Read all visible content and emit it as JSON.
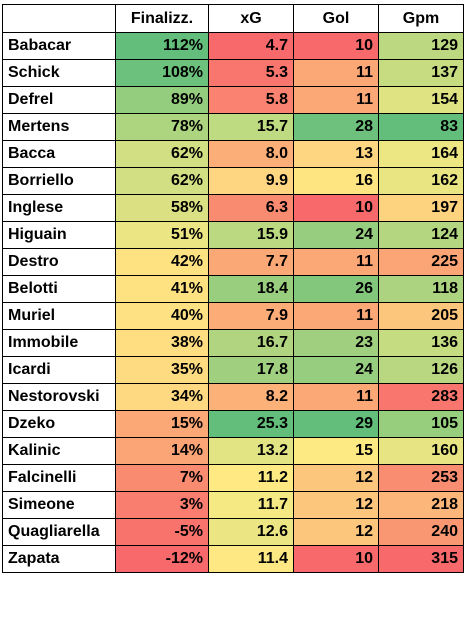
{
  "headers": [
    "",
    "Finalizz.",
    "xG",
    "Gol",
    "Gpm"
  ],
  "rows": [
    {
      "name": "Babacar",
      "fin": "112%",
      "xg": "4.7",
      "gol": "10",
      "gpm": "129",
      "colors": [
        "#63be7b",
        "#f8696b",
        "#f8696b",
        "#bcd981"
      ]
    },
    {
      "name": "Schick",
      "fin": "108%",
      "xg": "5.3",
      "gol": "11",
      "gpm": "137",
      "colors": [
        "#6cc17c",
        "#f8766d",
        "#fba776",
        "#c7dc81"
      ]
    },
    {
      "name": "Defrel",
      "fin": "89%",
      "xg": "5.8",
      "gol": "11",
      "gpm": "154",
      "colors": [
        "#95cd7e",
        "#f98370",
        "#fba776",
        "#dfe382"
      ]
    },
    {
      "name": "Mertens",
      "fin": "78%",
      "xg": "15.7",
      "gol": "28",
      "gpm": "83",
      "colors": [
        "#add47f",
        "#bfdb81",
        "#6ec17c",
        "#63be7b"
      ]
    },
    {
      "name": "Bacca",
      "fin": "62%",
      "xg": "8.0",
      "gol": "13",
      "gpm": "164",
      "colors": [
        "#d2df82",
        "#fbae78",
        "#fed681",
        "#ece683"
      ]
    },
    {
      "name": "Borriello",
      "fin": "62%",
      "xg": "9.9",
      "gol": "16",
      "gpm": "162",
      "colors": [
        "#d2df82",
        "#fed580",
        "#fee582",
        "#e9e583"
      ]
    },
    {
      "name": "Inglese",
      "fin": "58%",
      "xg": "6.3",
      "gol": "10",
      "gpm": "197",
      "colors": [
        "#dbe182",
        "#f98b71",
        "#f8696b",
        "#fed380"
      ]
    },
    {
      "name": "Higuain",
      "fin": "51%",
      "xg": "15.9",
      "gol": "24",
      "gpm": "124",
      "colors": [
        "#ebe583",
        "#bbd981",
        "#97cd7e",
        "#b5d680"
      ]
    },
    {
      "name": "Destro",
      "fin": "42%",
      "xg": "7.7",
      "gol": "11",
      "gpm": "225",
      "colors": [
        "#fee282",
        "#faa876",
        "#fba776",
        "#fba476"
      ]
    },
    {
      "name": "Belotti",
      "fin": "41%",
      "xg": "18.4",
      "gol": "26",
      "gpm": "118",
      "colors": [
        "#fee282",
        "#98ce7e",
        "#83c77d",
        "#acd380"
      ]
    },
    {
      "name": "Muriel",
      "fin": "40%",
      "xg": "7.9",
      "gol": "11",
      "gpm": "205",
      "colors": [
        "#fee182",
        "#fbac77",
        "#fba776",
        "#fdc67d"
      ]
    },
    {
      "name": "Immobile",
      "fin": "38%",
      "xg": "16.7",
      "gol": "23",
      "gpm": "136",
      "colors": [
        "#fede81",
        "#b0d47f",
        "#a0d07f",
        "#c5dc81"
      ]
    },
    {
      "name": "Icardi",
      "fin": "35%",
      "xg": "17.8",
      "gol": "24",
      "gpm": "126",
      "colors": [
        "#feda81",
        "#a0d07f",
        "#97cd7e",
        "#b8d780"
      ]
    },
    {
      "name": "Nestorovski",
      "fin": "34%",
      "xg": "8.2",
      "gol": "11",
      "gpm": "283",
      "colors": [
        "#fed981",
        "#fbb178",
        "#fba776",
        "#f8766d"
      ]
    },
    {
      "name": "Dzeko",
      "fin": "15%",
      "xg": "25.3",
      "gol": "29",
      "gpm": "105",
      "colors": [
        "#fba776",
        "#63be7b",
        "#63be7b",
        "#96ce7e"
      ]
    },
    {
      "name": "Kalinic",
      "fin": "14%",
      "xg": "13.2",
      "gol": "15",
      "gpm": "160",
      "colors": [
        "#fba576",
        "#e2e383",
        "#feea83",
        "#e6e483"
      ]
    },
    {
      "name": "Falcinelli",
      "fin": "7%",
      "xg": "11.2",
      "gol": "12",
      "gpm": "253",
      "colors": [
        "#f98b71",
        "#fee983",
        "#fdc67d",
        "#f98d72"
      ]
    },
    {
      "name": "Simeone",
      "fin": "3%",
      "xg": "11.7",
      "gol": "12",
      "gpm": "218",
      "colors": [
        "#f97e6f",
        "#f5e984",
        "#fdc67d",
        "#fcb679"
      ]
    },
    {
      "name": "Quagliarella",
      "fin": "-5%",
      "xg": "12.6",
      "gol": "12",
      "gpm": "240",
      "colors": [
        "#f9736d",
        "#ebe583",
        "#fdc67d",
        "#fa9773"
      ]
    },
    {
      "name": "Zapata",
      "fin": "-12%",
      "xg": "11.4",
      "gol": "10",
      "gpm": "315",
      "colors": [
        "#f8696b",
        "#fde883",
        "#f8696b",
        "#f8696b"
      ]
    }
  ]
}
